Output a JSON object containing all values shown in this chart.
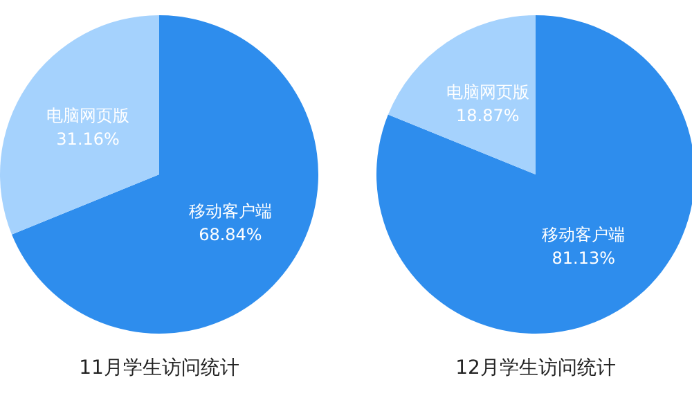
{
  "chart_data": [
    {
      "type": "pie",
      "title": "11月学生访问统计",
      "categories": [
        "移动客户端",
        "电脑网页版"
      ],
      "values": [
        68.84,
        31.16
      ],
      "colors": [
        "#2e8ded",
        "#a5d2fd"
      ],
      "value_labels": [
        "68.84%",
        "31.16%"
      ]
    },
    {
      "type": "pie",
      "title": "12月学生访问统计",
      "categories": [
        "移动客户端",
        "电脑网页版"
      ],
      "values": [
        81.13,
        18.87
      ],
      "colors": [
        "#2e8ded",
        "#a5d2fd"
      ],
      "value_labels": [
        "81.13%",
        "18.87%"
      ]
    }
  ]
}
